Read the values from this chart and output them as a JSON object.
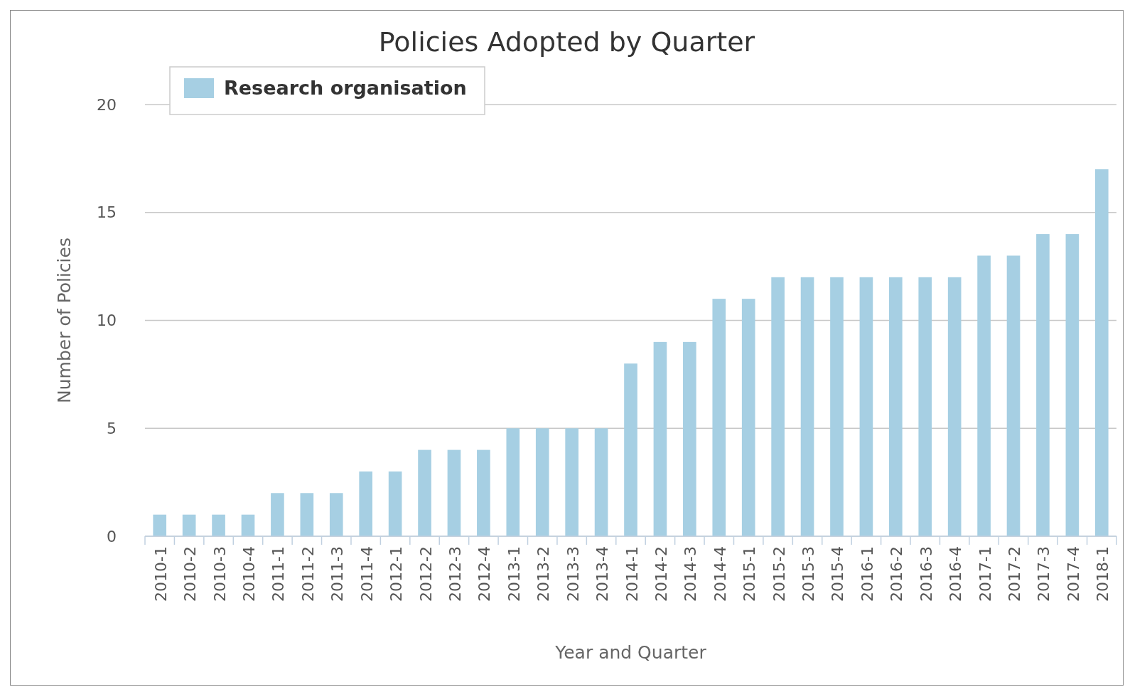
{
  "chart_data": {
    "type": "bar",
    "title": "Policies Adopted by Quarter",
    "xlabel": "Year and Quarter",
    "ylabel": "Number of Policies",
    "categories": [
      "2010-1",
      "2010-2",
      "2010-3",
      "2010-4",
      "2011-1",
      "2011-2",
      "2011-3",
      "2011-4",
      "2012-1",
      "2012-2",
      "2012-3",
      "2012-4",
      "2013-1",
      "2013-2",
      "2013-3",
      "2013-4",
      "2014-1",
      "2014-2",
      "2014-3",
      "2014-4",
      "2015-1",
      "2015-2",
      "2015-3",
      "2015-4",
      "2016-1",
      "2016-2",
      "2016-3",
      "2016-4",
      "2017-1",
      "2017-2",
      "2017-3",
      "2017-4",
      "2018-1"
    ],
    "series": [
      {
        "name": "Research organisation",
        "color": "#a6cfe3",
        "values": [
          1,
          1,
          1,
          1,
          2,
          2,
          2,
          3,
          3,
          4,
          4,
          4,
          5,
          5,
          5,
          5,
          8,
          9,
          9,
          11,
          11,
          12,
          12,
          12,
          12,
          12,
          12,
          12,
          13,
          13,
          14,
          14,
          17
        ]
      }
    ],
    "ylim": [
      0,
      20
    ],
    "yticks": [
      0,
      5,
      10,
      15,
      20
    ],
    "grid": "y",
    "legend": "top left"
  }
}
